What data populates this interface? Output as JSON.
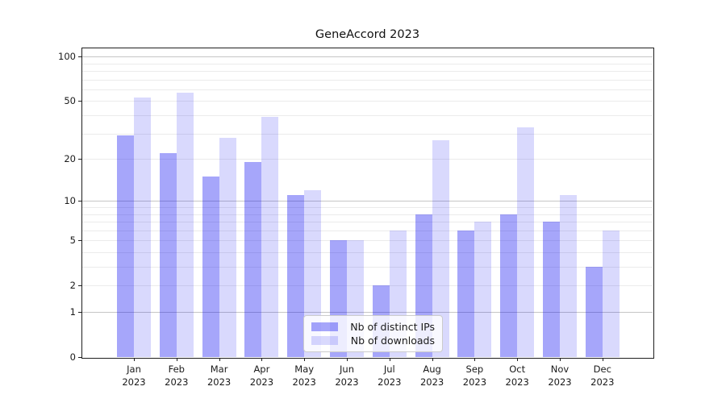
{
  "chart_data": {
    "type": "bar",
    "title": "GeneAccord 2023",
    "categories": [
      "Jan 2023",
      "Feb 2023",
      "Mar 2023",
      "Apr 2023",
      "May 2023",
      "Jun 2023",
      "Jul 2023",
      "Aug 2023",
      "Sep 2023",
      "Oct 2023",
      "Nov 2023",
      "Dec 2023"
    ],
    "x_tick_line1": [
      "Jan",
      "Feb",
      "Mar",
      "Apr",
      "May",
      "Jun",
      "Jul",
      "Aug",
      "Sep",
      "Oct",
      "Nov",
      "Dec"
    ],
    "x_tick_line2": "2023",
    "series": [
      {
        "name": "Nb of distinct IPs",
        "color": "rgba(0,0,240,0.35)",
        "values": [
          29,
          22,
          15,
          19,
          11,
          5,
          2,
          8,
          6,
          8,
          7,
          3
        ]
      },
      {
        "name": "Nb of downloads",
        "color": "rgba(0,0,240,0.15)",
        "values": [
          53,
          57,
          28,
          39,
          12,
          5,
          6,
          27,
          7,
          33,
          11,
          6
        ]
      }
    ],
    "xlabel": "",
    "ylabel": "",
    "yscale": "log1p",
    "yticks": [
      0,
      1,
      2,
      5,
      10,
      20,
      50,
      100
    ],
    "ylim": [
      0,
      115
    ],
    "major_gridlines": [
      1,
      10,
      100
    ],
    "minor_gridlines": [
      2,
      3,
      4,
      5,
      6,
      7,
      8,
      9,
      20,
      30,
      40,
      50,
      60,
      70,
      80,
      90
    ],
    "grid": true,
    "legend_position": "lower center"
  }
}
